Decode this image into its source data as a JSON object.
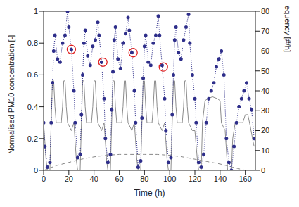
{
  "chart_data": {
    "type": "line",
    "x_label": "Time (h)",
    "y_label": "Normalised PM10 concentration [-]",
    "y2_label": "Train frequency [#/h]",
    "xlim": [
      0,
      168
    ],
    "xticks": [
      0,
      20,
      40,
      60,
      80,
      100,
      120,
      140,
      160
    ],
    "ylim": [
      0,
      1
    ],
    "yticks": [
      0,
      0.2,
      0.4,
      0.6,
      0.8,
      1
    ],
    "y2lim": [
      0,
      80
    ],
    "y2ticks": [
      0,
      10,
      20,
      30,
      40,
      50,
      60,
      70,
      80
    ],
    "grid": false,
    "series": [
      {
        "color": "#8c8c8c",
        "axis": "y2",
        "marker": "none",
        "line_style": "solid",
        "x": [
          0,
          2,
          3,
          5,
          6,
          7,
          8,
          9,
          10,
          14,
          15,
          16,
          17,
          18,
          19,
          22,
          24,
          26,
          27,
          29,
          30,
          31,
          32,
          33,
          34,
          38,
          39,
          40,
          41,
          42,
          43,
          46,
          48,
          50,
          51,
          53,
          54,
          55,
          56,
          57,
          58,
          62,
          63,
          64,
          65,
          66,
          67,
          70,
          72,
          74,
          75,
          77,
          78,
          79,
          80,
          81,
          82,
          86,
          87,
          88,
          89,
          90,
          91,
          94,
          96,
          98,
          99,
          101,
          102,
          103,
          104,
          105,
          106,
          110,
          111,
          112,
          113,
          114,
          115,
          118,
          120,
          122,
          123,
          125,
          126,
          128,
          130,
          134,
          138,
          140,
          141,
          144,
          146,
          149,
          150,
          152,
          158,
          160,
          162,
          164,
          166,
          167
        ],
        "values": [
          24,
          5,
          0,
          0,
          24,
          45,
          45,
          32,
          24,
          24,
          32,
          45,
          45,
          32,
          24,
          20,
          24,
          5,
          0,
          0,
          24,
          45,
          45,
          32,
          24,
          24,
          32,
          45,
          45,
          32,
          24,
          20,
          24,
          5,
          0,
          0,
          24,
          45,
          45,
          32,
          24,
          24,
          32,
          45,
          45,
          32,
          24,
          20,
          24,
          5,
          0,
          0,
          24,
          45,
          45,
          32,
          24,
          24,
          32,
          45,
          45,
          32,
          24,
          20,
          24,
          5,
          0,
          0,
          24,
          45,
          45,
          32,
          24,
          24,
          32,
          45,
          45,
          32,
          24,
          20,
          20,
          5,
          0,
          0,
          24,
          35,
          36,
          37,
          36,
          35,
          24,
          20,
          0,
          0,
          16,
          24,
          24,
          28,
          28,
          22,
          15,
          12
        ]
      },
      {
        "color": "#888888",
        "axis": "y",
        "marker": "none",
        "line_style": "dashed",
        "x": [
          0,
          10,
          20,
          30,
          40,
          50,
          60,
          70,
          80,
          90,
          100,
          110,
          120,
          130,
          140,
          150,
          160
        ],
        "values": [
          0,
          0.03,
          0.05,
          0.07,
          0.085,
          0.095,
          0.1,
          0.1,
          0.1,
          0.1,
          0.095,
          0.085,
          0.07,
          0.055,
          0.04,
          0.02,
          0
        ]
      },
      {
        "color": "#2e2e8a",
        "axis": "y",
        "marker": "circle",
        "line_style": "dotted",
        "x": [
          0,
          1,
          3,
          5,
          6,
          7,
          8,
          9,
          11,
          13,
          15,
          17,
          19,
          20,
          22,
          24,
          25,
          27,
          29,
          30,
          31,
          32,
          33,
          35,
          37,
          39,
          41,
          43,
          44,
          46,
          48,
          49,
          51,
          53,
          54,
          55,
          56,
          57,
          59,
          61,
          63,
          65,
          67,
          68,
          70,
          72,
          73,
          75,
          77,
          78,
          79,
          80,
          81,
          83,
          85,
          87,
          89,
          91,
          92,
          94,
          96,
          97,
          99,
          101,
          102,
          103,
          104,
          105,
          107,
          109,
          111,
          113,
          115,
          116,
          118,
          120,
          121,
          123,
          125,
          127,
          129,
          131,
          133,
          135,
          137,
          139,
          141,
          143,
          145,
          147,
          149,
          151,
          153,
          155,
          157,
          159,
          161,
          163,
          165,
          167
        ],
        "values": [
          0.3,
          0.15,
          0.02,
          0.05,
          0.3,
          0.55,
          0.75,
          0.85,
          0.7,
          0.68,
          0.8,
          0.85,
          1.0,
          0.9,
          0.76,
          0.5,
          0.3,
          0.08,
          0.1,
          0.35,
          0.6,
          0.8,
          0.88,
          0.72,
          0.66,
          0.78,
          0.82,
          0.93,
          0.85,
          0.68,
          0.45,
          0.2,
          0.05,
          0.1,
          0.38,
          0.62,
          0.82,
          0.9,
          0.7,
          0.64,
          0.8,
          0.86,
          0.96,
          0.88,
          0.74,
          0.5,
          0.3,
          0.02,
          0.06,
          0.33,
          0.58,
          0.78,
          0.85,
          0.68,
          0.66,
          0.8,
          0.85,
          0.97,
          0.85,
          0.66,
          0.45,
          0.25,
          0.05,
          0.08,
          0.35,
          0.6,
          0.82,
          0.9,
          0.74,
          0.7,
          0.82,
          0.9,
          0.98,
          0.8,
          0.6,
          0.45,
          0.3,
          0.05,
          0.02,
          0.1,
          0.3,
          0.45,
          0.5,
          0.55,
          0.65,
          0.7,
          0.75,
          0.6,
          0.2,
          0.05,
          0,
          0.15,
          0.3,
          0.4,
          0.45,
          0.5,
          0.55,
          0.45,
          0.38,
          0.2
        ]
      },
      {
        "color": "#e02020",
        "axis": "y",
        "marker": "open_circle",
        "line_style": "none",
        "x": [
          22,
          47,
          71,
          95
        ],
        "values": [
          0.76,
          0.68,
          0.74,
          0.65
        ]
      }
    ]
  }
}
